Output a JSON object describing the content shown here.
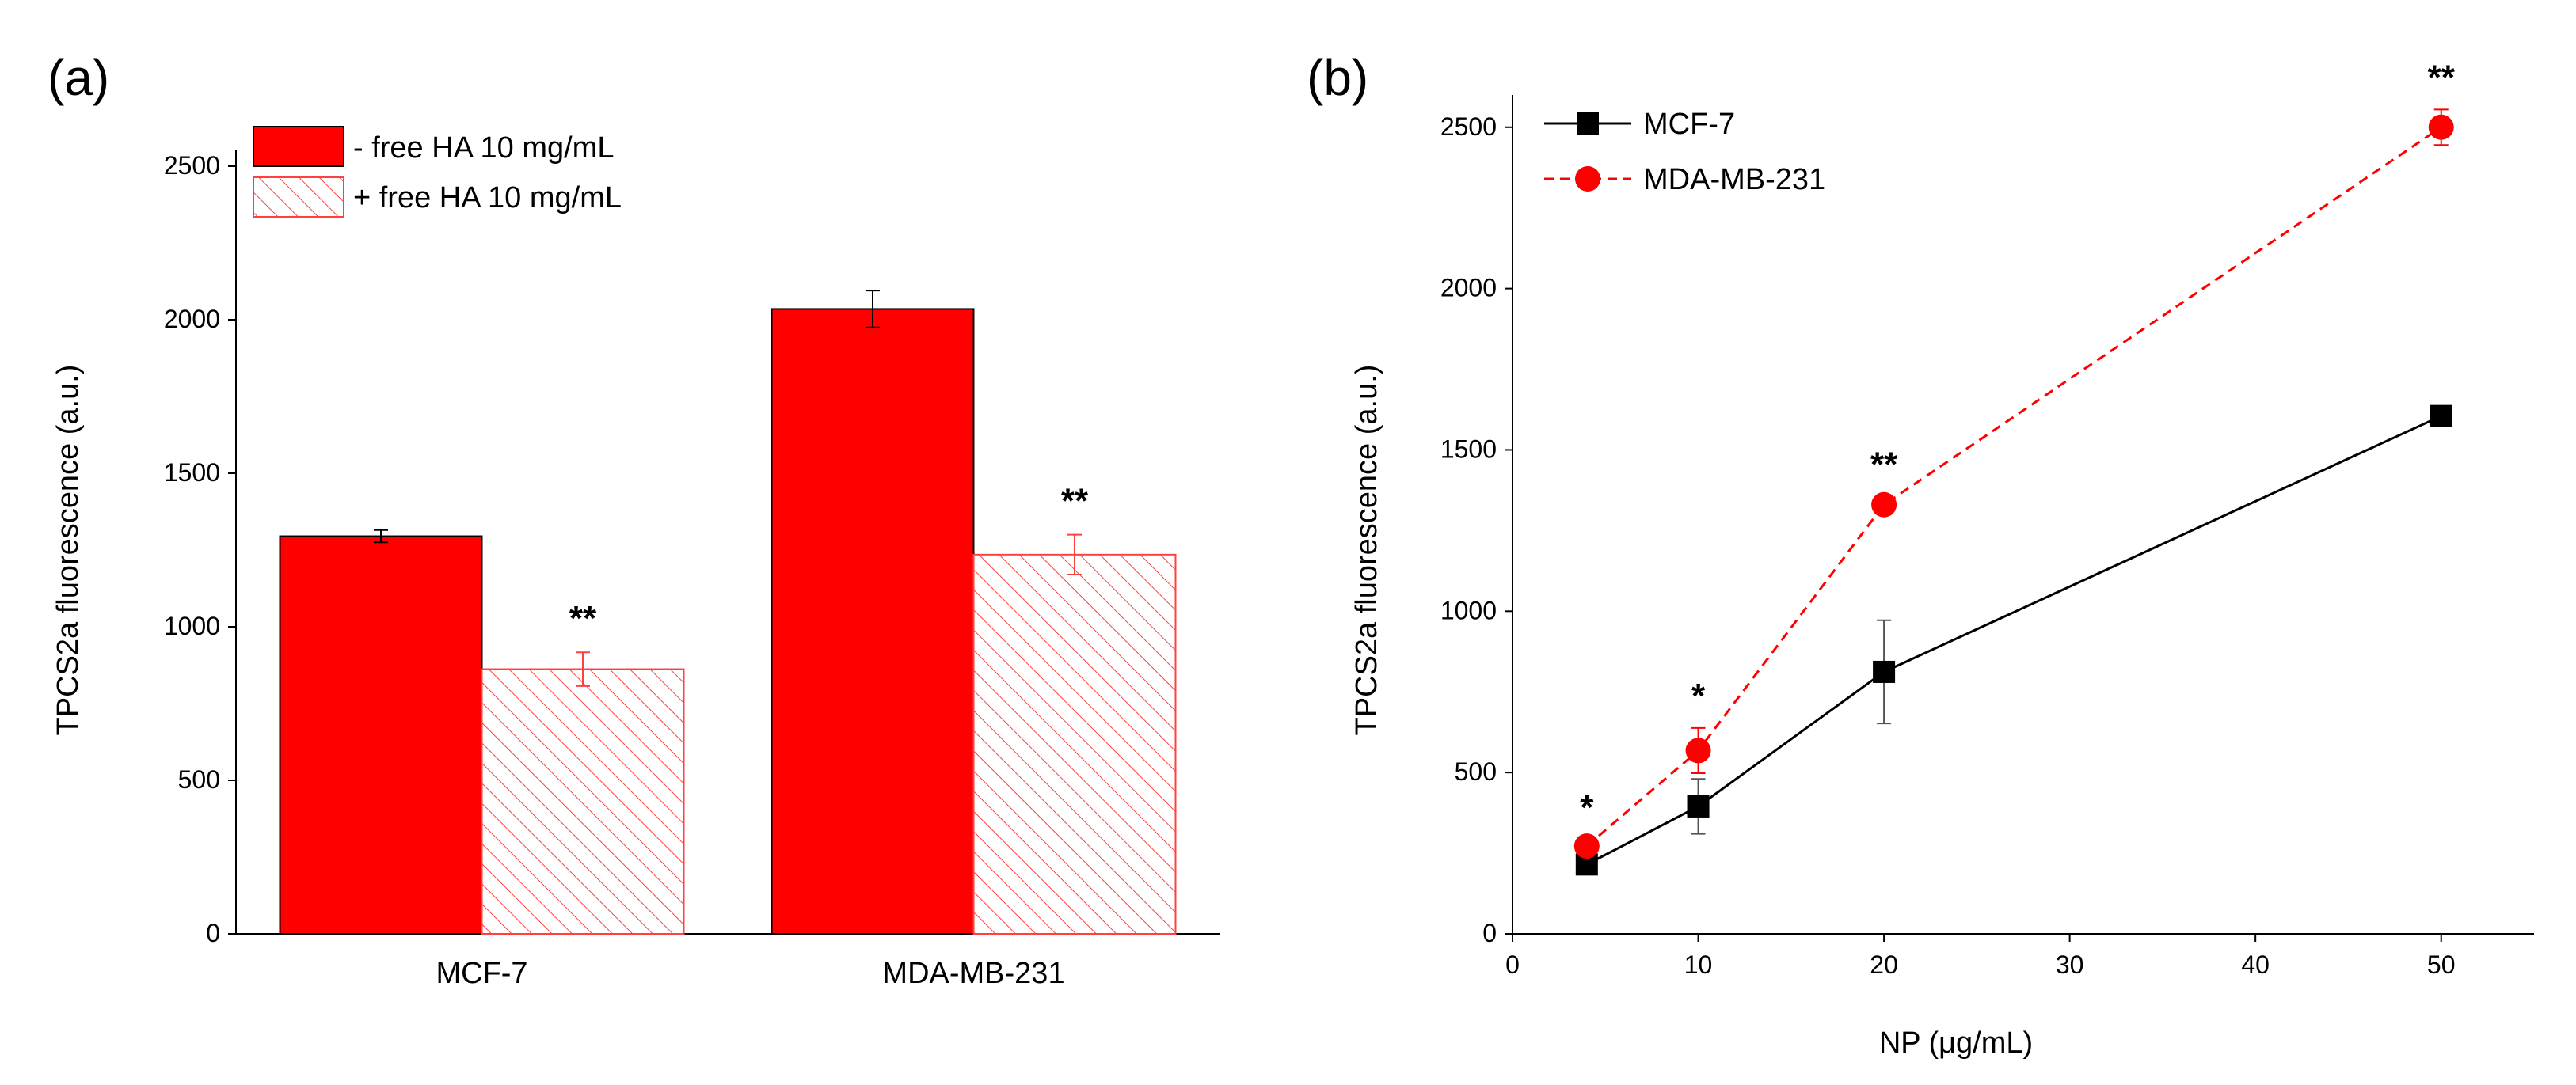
{
  "chart_data": [
    {
      "panel_label": "(a)",
      "type": "bar",
      "categories": [
        "MCF-7",
        "MDA-MB-231"
      ],
      "series": [
        {
          "name": "-  free HA 10 mg/mL",
          "values": [
            1295,
            2035
          ],
          "errors": [
            20,
            60
          ],
          "color": "#ff0000",
          "pattern": "solid"
        },
        {
          "name": "+ free HA 10 mg/mL",
          "values": [
            862,
            1235
          ],
          "errors": [
            55,
            65
          ],
          "color": "#ff0000",
          "pattern": "hatched"
        }
      ],
      "significance": [
        {
          "category_index": 0,
          "series_index": 1,
          "label": "**"
        },
        {
          "category_index": 1,
          "series_index": 1,
          "label": "**"
        }
      ],
      "xlabel": "",
      "ylabel": "TPCS2a fluorescence (a.u.)",
      "ylim": [
        0,
        2500
      ],
      "yticks": [
        0,
        500,
        1000,
        1500,
        2000,
        2500
      ],
      "legend_position": "top-left",
      "grid": false
    },
    {
      "panel_label": "(b)",
      "type": "line",
      "xlabel": "NP (μg/mL)",
      "ylabel": "TPCS2a fluorescence (a.u.)",
      "xlim": [
        0,
        55
      ],
      "ylim": [
        0,
        2600
      ],
      "xticks": [
        0,
        10,
        20,
        30,
        40,
        50
      ],
      "yticks": [
        0,
        500,
        1000,
        1500,
        2000,
        2500
      ],
      "series": [
        {
          "name": "MCF-7",
          "x": [
            4,
            10,
            20,
            50
          ],
          "y": [
            215,
            395,
            812,
            1605
          ],
          "errors": [
            20,
            85,
            160,
            20
          ],
          "color": "#000000",
          "marker": "square",
          "line": "solid"
        },
        {
          "name": "MDA-MB-231",
          "x": [
            4,
            10,
            20,
            50
          ],
          "y": [
            272,
            568,
            1330,
            2500
          ],
          "errors": [
            20,
            70,
            25,
            55
          ],
          "color": "#ff0000",
          "marker": "circle",
          "line": "dashed"
        }
      ],
      "significance": [
        {
          "x": 4,
          "label": "*"
        },
        {
          "x": 10,
          "label": "*"
        },
        {
          "x": 20,
          "label": "**"
        },
        {
          "x": 50,
          "label": "**"
        }
      ],
      "legend_position": "top-left",
      "grid": false
    }
  ]
}
